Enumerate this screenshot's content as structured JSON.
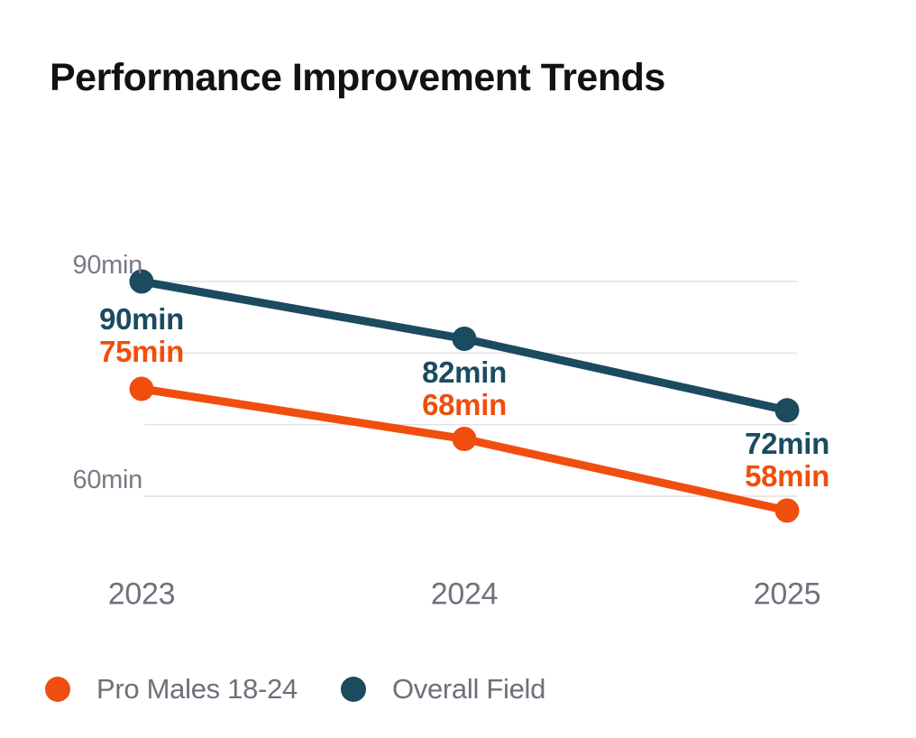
{
  "title": "Performance Improvement Trends",
  "chart_data": {
    "type": "line",
    "title": "Performance Improvement Trends",
    "categories": [
      "2023",
      "2024",
      "2025"
    ],
    "series": [
      {
        "name": "Pro Males 18-24",
        "color": "#F04E0E",
        "values": [
          75,
          68,
          58
        ],
        "point_labels": [
          "75min",
          "68min",
          "58min"
        ]
      },
      {
        "name": "Overall Field",
        "color": "#1A4B5F",
        "values": [
          90,
          82,
          72
        ],
        "point_labels": [
          "90min",
          "82min",
          "72min"
        ]
      }
    ],
    "y_axis": {
      "unit": "min",
      "gridlines": [
        90,
        80,
        70,
        60
      ],
      "tick_labels": [
        {
          "value": 90,
          "label": "90min"
        },
        {
          "value": 60,
          "label": "60min"
        }
      ],
      "range_shown": [
        60,
        90
      ]
    },
    "x_axis": {
      "tick_labels": [
        "2023",
        "2024",
        "2025"
      ]
    },
    "legend": {
      "position": "bottom-left",
      "entries": [
        "Pro Males 18-24",
        "Overall Field"
      ]
    },
    "styles": {
      "background": "#FFFFFF",
      "grid_color": "#E1E1E5",
      "tick_text_color": "#7C7987",
      "axis_text_color": "#73707D",
      "legend_text_color": "#706E7B",
      "title_color": "#121216"
    }
  }
}
